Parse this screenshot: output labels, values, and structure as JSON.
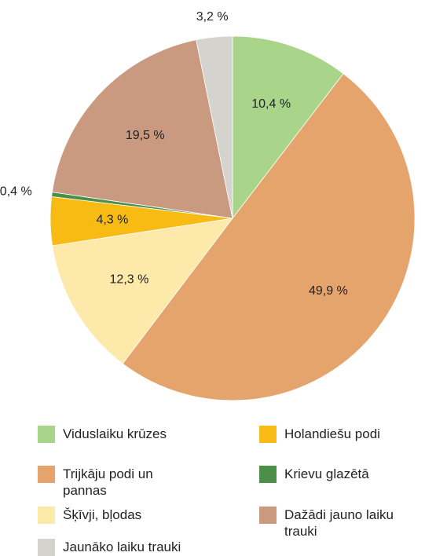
{
  "chart_data": {
    "type": "pie",
    "categories": [
      "Viduslaiku krūzes",
      "Trijkāju podi un pannas",
      "Šķīvji, bļodas",
      "Holandiešu podi",
      "Krievu glazētā",
      "Dažādi jauno laiku trauki",
      "Jaunāko laiku trauki"
    ],
    "values": [
      10.4,
      49.9,
      12.3,
      4.3,
      0.4,
      19.5,
      3.2
    ],
    "value_labels": [
      "10,4 %",
      "49,9 %",
      "12,3 %",
      "4,3 %",
      "0,4 %",
      "19,5 %",
      "3,2 %"
    ],
    "colors": [
      "#a9d58b",
      "#e5a46c",
      "#fde9a9",
      "#f8bb14",
      "#4b8f48",
      "#c99a80",
      "#d5d3cd"
    ]
  }
}
